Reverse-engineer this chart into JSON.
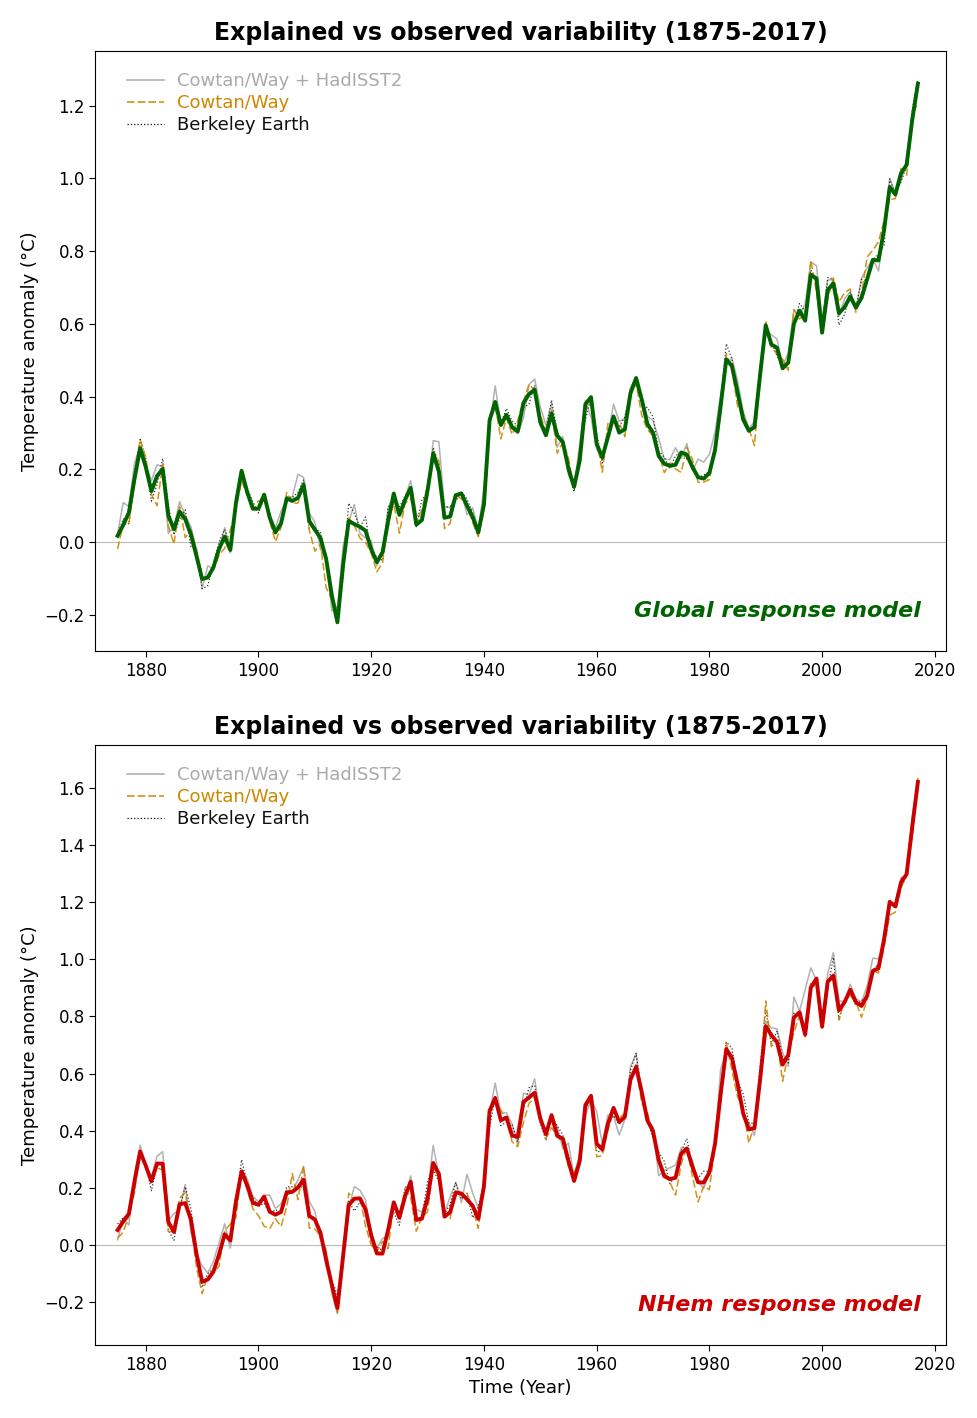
{
  "title": "Explained vs observed variability (1875-2017)",
  "xlabel": "Time (Year)",
  "ylabel": "Temperature anomaly (°C)",
  "global_label": "Global response model",
  "nhem_label": "NHem response model",
  "global_color": "#006400",
  "nhem_color": "#cc0000",
  "cowtan_hadiisst_color": "#aaaaaa",
  "cowtan_way_color": "#cc8800",
  "berkeley_color": "#111111",
  "legend_labels": [
    "Cowtan/Way + HadISST2",
    "Cowtan/Way",
    "Berkeley Earth"
  ],
  "year_start": 1875,
  "year_end": 2017,
  "global_ylim": [
    -0.3,
    1.35
  ],
  "nhem_ylim": [
    -0.35,
    1.75
  ],
  "global_yticks": [
    -0.2,
    0.0,
    0.2,
    0.4,
    0.6,
    0.8,
    1.0,
    1.2
  ],
  "nhem_yticks": [
    -0.2,
    0.0,
    0.2,
    0.4,
    0.6,
    0.8,
    1.0,
    1.2,
    1.4,
    1.6
  ],
  "xticks": [
    1880,
    1900,
    1920,
    1940,
    1960,
    1980,
    2000,
    2020
  ]
}
